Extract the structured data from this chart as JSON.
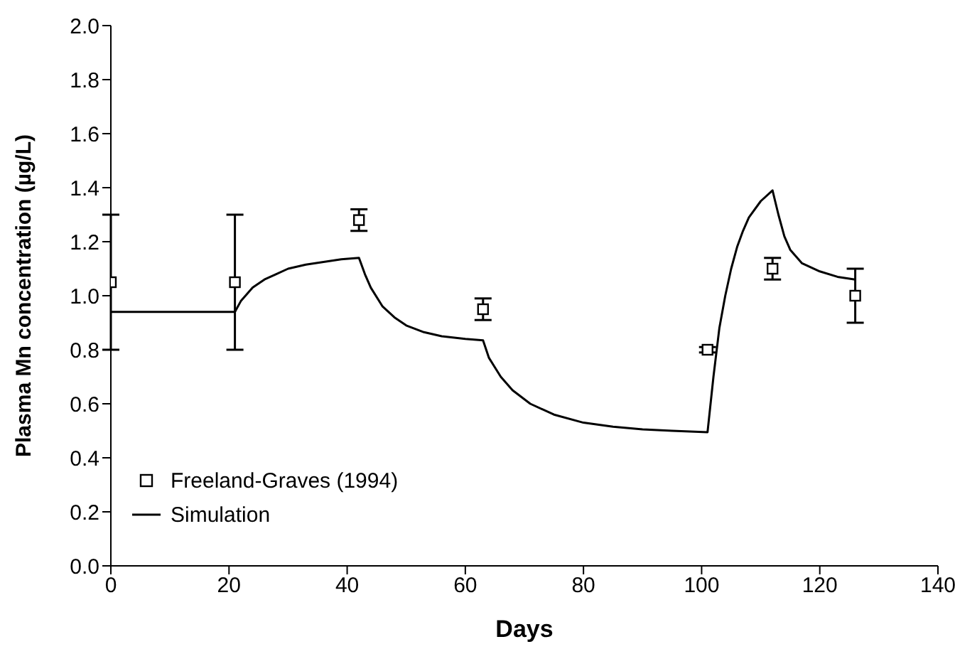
{
  "chart_data": {
    "type": "scatter",
    "xlabel": "Days",
    "ylabel": "Plasma Mn concentration (µg/L)",
    "xlim": [
      0,
      140
    ],
    "xticks": [
      0,
      20,
      40,
      60,
      80,
      100,
      120,
      140
    ],
    "ylim": [
      0,
      2
    ],
    "yticks": [
      {
        "value": 0,
        "label": "0.0"
      },
      {
        "value": 0.2,
        "label": "0.2"
      },
      {
        "value": 0.4,
        "label": "0.4"
      },
      {
        "value": 0.6,
        "label": "0.6"
      },
      {
        "value": 0.8,
        "label": "0.8"
      },
      {
        "value": 1,
        "label": "1.0"
      },
      {
        "value": 1.2,
        "label": "1.2"
      },
      {
        "value": 1.4,
        "label": "1.4"
      },
      {
        "value": 1.6,
        "label": "1.6"
      },
      {
        "value": 1.8,
        "label": "1.8"
      },
      {
        "value": 2,
        "label": "2.0"
      }
    ],
    "grid": false,
    "legend": "bottom left",
    "series": [
      {
        "name": "Freeland-Graves (1994)",
        "color": "#000000",
        "marker": "square",
        "x": [
          0,
          21,
          42,
          63,
          101,
          112,
          126
        ],
        "values": [
          1.05,
          1.05,
          1.28,
          0.95,
          0.8,
          1.1,
          1.0
        ],
        "errors": [
          0.25,
          0.25,
          0.04,
          0.04,
          0.01,
          0.04,
          0.1
        ]
      },
      {
        "name": "Simulation",
        "type": "line",
        "color": "#000000",
        "marker": "none",
        "line_style": "solid",
        "x": [
          0,
          21,
          22,
          24,
          26,
          28,
          30,
          33,
          36,
          39,
          42,
          43,
          44,
          46,
          48,
          50,
          53,
          56,
          60,
          63,
          64,
          66,
          68,
          71,
          75,
          80,
          85,
          90,
          95,
          101,
          102,
          103,
          104,
          105,
          106,
          107,
          108,
          110,
          112,
          113,
          114,
          115,
          117,
          120,
          123,
          126
        ],
        "values": [
          0.94,
          0.94,
          0.98,
          1.03,
          1.06,
          1.08,
          1.1,
          1.115,
          1.125,
          1.135,
          1.14,
          1.08,
          1.03,
          0.96,
          0.92,
          0.89,
          0.865,
          0.85,
          0.84,
          0.835,
          0.77,
          0.7,
          0.65,
          0.6,
          0.56,
          0.53,
          0.515,
          0.505,
          0.5,
          0.495,
          0.7,
          0.88,
          1.0,
          1.1,
          1.18,
          1.24,
          1.29,
          1.35,
          1.39,
          1.3,
          1.22,
          1.17,
          1.12,
          1.09,
          1.07,
          1.06
        ]
      }
    ]
  }
}
